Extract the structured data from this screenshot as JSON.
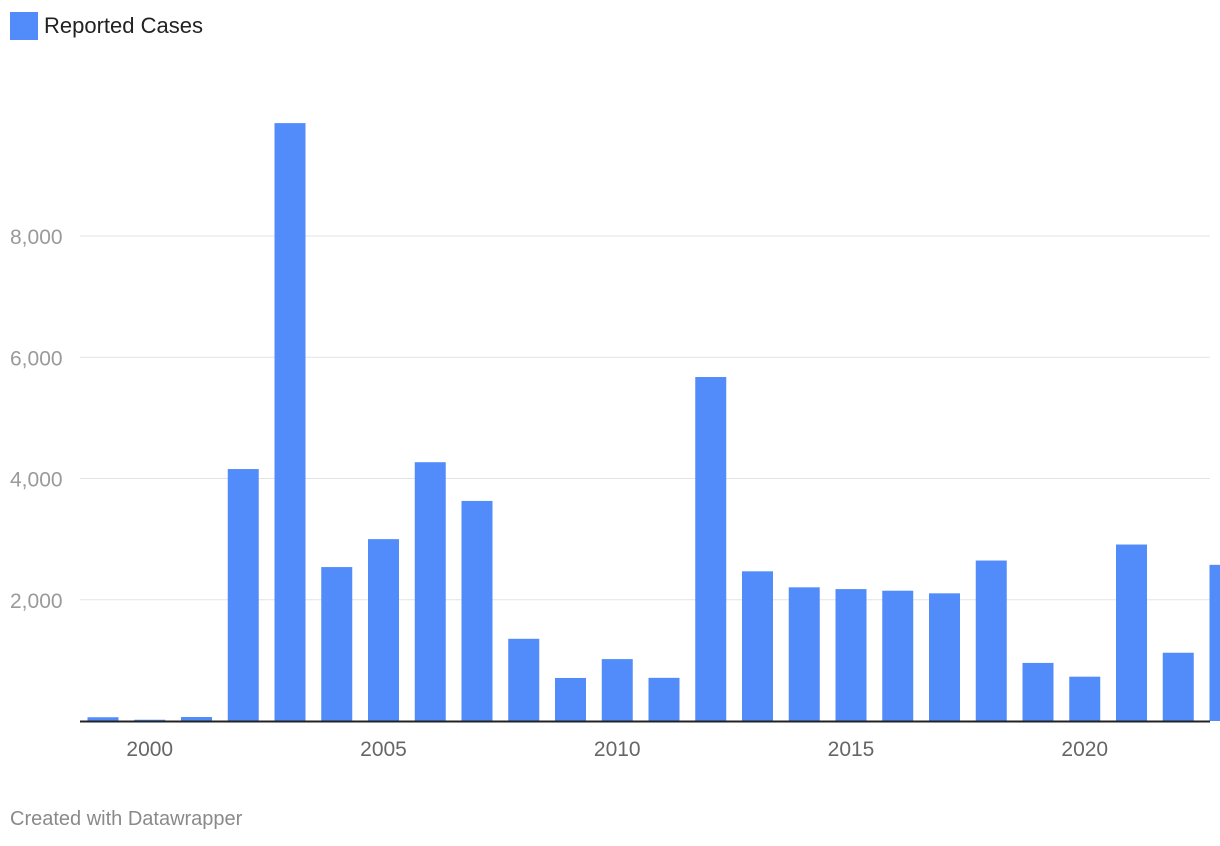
{
  "legend": {
    "label": "Reported Cases"
  },
  "footer": {
    "credit": "Created with Datawrapper"
  },
  "colors": {
    "bar": "#528cfa",
    "grid": "#e3e3e3",
    "axis": "#222222",
    "tick_label": "#9a9a9a",
    "x_tick_label": "#666666"
  },
  "chart_data": {
    "type": "bar",
    "title": "",
    "xlabel": "",
    "ylabel": "",
    "categories": [
      1999,
      2000,
      2001,
      2002,
      2003,
      2004,
      2005,
      2006,
      2007,
      2008,
      2009,
      2010,
      2011,
      2012,
      2013,
      2014,
      2015,
      2016,
      2017,
      2018,
      2019,
      2020,
      2021,
      2022,
      2023
    ],
    "series": [
      {
        "name": "Reported Cases",
        "values": [
          62,
          21,
          66,
          4156,
          9862,
          2539,
          3000,
          4269,
          3630,
          1356,
          710,
          1021,
          712,
          5674,
          2469,
          2205,
          2176,
          2149,
          2106,
          2647,
          958,
          731,
          2911,
          1126,
          2576
        ]
      }
    ],
    "ylim": [
      0,
      10200
    ],
    "yticks": [
      2000,
      4000,
      6000,
      8000
    ],
    "ytick_labels": [
      "2,000",
      "4,000",
      "6,000",
      "8,000"
    ],
    "xticks": [
      2000,
      2005,
      2010,
      2015,
      2020
    ],
    "xtick_labels": [
      "2000",
      "2005",
      "2010",
      "2015",
      "2020"
    ],
    "grid": true,
    "legend_position": "top-left"
  }
}
